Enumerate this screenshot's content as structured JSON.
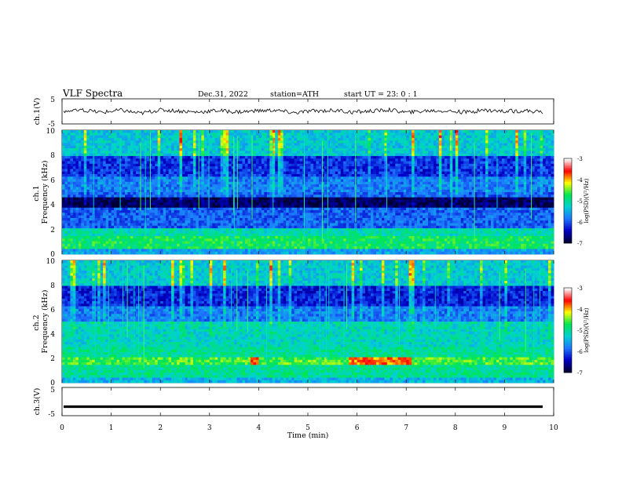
{
  "header": {
    "title": "VLF  Spectra",
    "date": "Dec.31, 2022",
    "station": "station=ATH",
    "start": "start  UT  =    23: 0   : 1"
  },
  "colors": {
    "waveform": "#000000",
    "cmap": [
      "#000033",
      "#0000c8",
      "#1e78ff",
      "#00d2d2",
      "#00e650",
      "#ffff00",
      "#ff0000",
      "#ffffff"
    ]
  },
  "chart_data": [
    {
      "type": "line",
      "panel": "ch1-waveform",
      "ylabel": "ch.1(V)",
      "ylim": [
        -5,
        5
      ],
      "y_ticks": [
        "5",
        "-5"
      ],
      "series": [
        {
          "values": [
            0.0,
            0.3,
            -0.4,
            0.5,
            -0.8,
            0.6,
            0.2,
            -0.3,
            0.4,
            -0.2,
            0.1,
            0.5,
            -0.6,
            0.2,
            0.4,
            -0.3,
            0.1,
            0.6,
            -0.5,
            0.3,
            0.2,
            -0.4,
            0.5,
            0.0,
            0.3,
            -0.2
          ]
        }
      ]
    },
    {
      "type": "heatmap",
      "panel": "ch1-spectrogram",
      "ylabel": "ch.1\nFrequency  (kHz)",
      "ylim": [
        0,
        10
      ],
      "y_ticks": [
        "10",
        "8",
        "6",
        "4",
        "2",
        "0"
      ],
      "colorbar": {
        "label": "log(PSD)(V²/Hz)",
        "range": [
          -7,
          -3
        ],
        "ticks": [
          "-3",
          "-4",
          "-5",
          "-6",
          "-7"
        ]
      }
    },
    {
      "type": "heatmap",
      "panel": "ch2-spectrogram",
      "ylabel": "ch.2\nFrequency  (kHz)",
      "ylim": [
        0,
        10
      ],
      "y_ticks": [
        "10",
        "8",
        "6",
        "4",
        "2",
        "0"
      ],
      "colorbar": {
        "label": "log(PSD)(V²/Hz)",
        "range": [
          -7,
          -3
        ],
        "ticks": [
          "-3",
          "-4",
          "-5",
          "-6",
          "-7"
        ]
      }
    },
    {
      "type": "line",
      "panel": "ch3-waveform",
      "ylabel": "ch.3(V)",
      "ylim": [
        -5,
        5
      ],
      "y_ticks": [
        "5",
        "-5"
      ],
      "series": [
        {
          "values": [
            -1.8,
            -1.8,
            -1.8,
            -1.8,
            -1.8
          ]
        }
      ]
    }
  ],
  "xaxis": {
    "label": "Time  (min)",
    "range": [
      0,
      10
    ],
    "ticks": [
      "0",
      "1",
      "2",
      "3",
      "4",
      "5",
      "6",
      "7",
      "8",
      "9",
      "10"
    ]
  }
}
